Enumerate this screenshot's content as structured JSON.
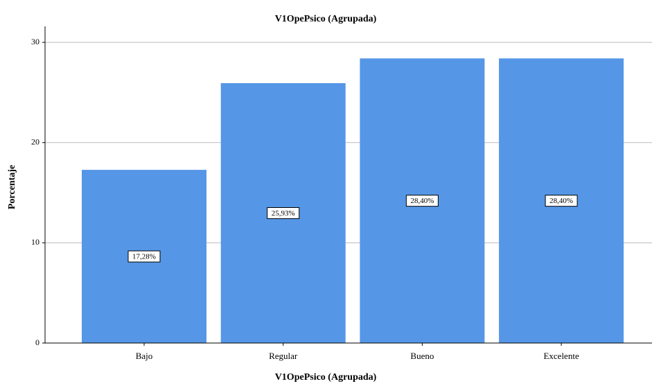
{
  "chart_data": {
    "type": "bar",
    "title": "V1OpePsico (Agrupada)",
    "x_label": "V1OpePsico (Agrupada)",
    "y_label": "Porcentaje",
    "categories": [
      "Bajo",
      "Regular",
      "Bueno",
      "Excelente"
    ],
    "values": [
      17.28,
      25.93,
      28.4,
      28.4
    ],
    "value_labels": [
      "17,28%",
      "25,93%",
      "28,40%",
      "28,40%"
    ],
    "color": "#5596e6",
    "ylim": [
      0,
      31.6
    ],
    "yticks": [
      0,
      10,
      20,
      30
    ],
    "grid": true
  }
}
